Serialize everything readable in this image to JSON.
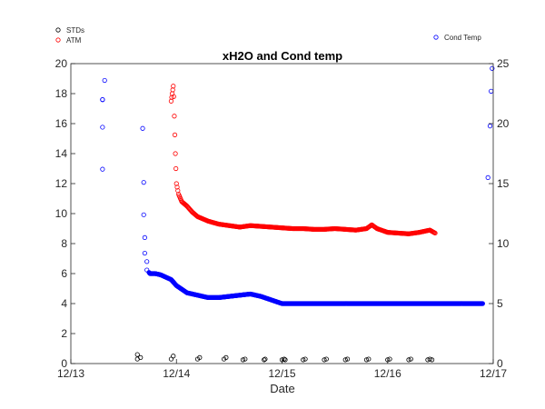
{
  "chart_data": {
    "type": "scatter",
    "title": "xH2O and Cond temp",
    "xlabel": "Date",
    "ylabel": "",
    "y2label": "",
    "x_unit": "days",
    "x_ticks": [
      {
        "value": 0,
        "label": "12/13"
      },
      {
        "value": 1,
        "label": "12/14"
      },
      {
        "value": 2,
        "label": "12/15"
      },
      {
        "value": 3,
        "label": "12/16"
      },
      {
        "value": 4,
        "label": "12/17"
      }
    ],
    "xlim": [
      0,
      4
    ],
    "ylim": [
      0,
      20
    ],
    "y_ticks": [
      0,
      2,
      4,
      6,
      8,
      10,
      12,
      14,
      16,
      18,
      20
    ],
    "y2lim": [
      0,
      25
    ],
    "y2_ticks": [
      0,
      5,
      10,
      15,
      20,
      25
    ],
    "grid": false,
    "colors": {
      "STDs": "#000000",
      "ATM": "#ff0000",
      "Cond Temp": "#0000ff"
    },
    "legend_left": {
      "placement": "top-left",
      "entries": [
        "STDs",
        "ATM"
      ]
    },
    "legend_right": {
      "placement": "top-right",
      "entries": [
        "Cond Temp"
      ]
    },
    "series": [
      {
        "name": "STDs",
        "axis": "left",
        "x": [
          0.63,
          0.66,
          0.63,
          0.95,
          0.97,
          1.2,
          1.22,
          1.45,
          1.47,
          1.63,
          1.65,
          1.83,
          1.84,
          2.0,
          2.02,
          2.03,
          2.2,
          2.22,
          2.4,
          2.42,
          2.6,
          2.62,
          2.8,
          2.82,
          3.0,
          3.02,
          3.2,
          3.22,
          3.38,
          3.4,
          3.42
        ],
        "y": [
          0.3,
          0.4,
          0.6,
          0.3,
          0.5,
          0.3,
          0.4,
          0.3,
          0.4,
          0.25,
          0.3,
          0.25,
          0.3,
          0.25,
          0.3,
          0.25,
          0.25,
          0.3,
          0.25,
          0.3,
          0.25,
          0.3,
          0.25,
          0.3,
          0.25,
          0.3,
          0.25,
          0.3,
          0.25,
          0.3,
          0.25
        ]
      },
      {
        "name": "ATM",
        "axis": "left",
        "x": [
          0.95,
          0.96,
          0.97,
          0.975,
          0.98,
          0.99,
          1.0,
          1.02,
          1.05,
          1.1,
          1.15,
          1.2,
          1.3,
          1.4,
          1.5,
          1.6,
          1.7,
          1.8,
          1.9,
          2.0,
          2.1,
          2.2,
          2.3,
          2.4,
          2.5,
          2.6,
          2.7,
          2.8,
          2.85,
          2.9,
          3.0,
          3.1,
          3.2,
          3.3,
          3.4,
          3.45
        ],
        "y": [
          17.5,
          18.0,
          18.5,
          17.8,
          16.5,
          14.0,
          12.0,
          11.3,
          10.8,
          10.5,
          10.1,
          9.8,
          9.5,
          9.3,
          9.2,
          9.1,
          9.2,
          9.15,
          9.1,
          9.05,
          9.0,
          9.0,
          8.95,
          8.95,
          9.0,
          8.95,
          8.9,
          9.0,
          9.25,
          9.0,
          8.75,
          8.7,
          8.65,
          8.75,
          8.9,
          8.7
        ]
      },
      {
        "name": "Cond Temp",
        "axis": "right",
        "x": [
          0.3,
          0.3,
          0.3,
          0.32,
          0.3,
          0.68,
          0.69,
          0.69,
          0.7,
          0.7,
          0.72,
          0.72,
          0.74,
          0.75,
          0.78,
          0.8,
          0.85,
          0.9,
          0.95,
          1.0,
          1.05,
          1.1,
          1.2,
          1.3,
          1.4,
          1.5,
          1.6,
          1.7,
          1.8,
          1.9,
          2.0,
          2.5,
          3.0,
          3.5,
          3.9,
          3.95,
          3.97,
          3.98,
          3.99
        ],
        "y": [
          16.2,
          19.7,
          22.0,
          23.6,
          22.0,
          19.6,
          15.1,
          12.4,
          10.5,
          9.2,
          8.5,
          7.8,
          7.6,
          7.5,
          7.5,
          7.5,
          7.4,
          7.2,
          7.0,
          6.5,
          6.2,
          5.9,
          5.7,
          5.5,
          5.5,
          5.6,
          5.7,
          5.8,
          5.6,
          5.3,
          5.0,
          5.0,
          5.0,
          5.0,
          5.0,
          15.5,
          19.8,
          22.7,
          24.6
        ]
      }
    ]
  }
}
